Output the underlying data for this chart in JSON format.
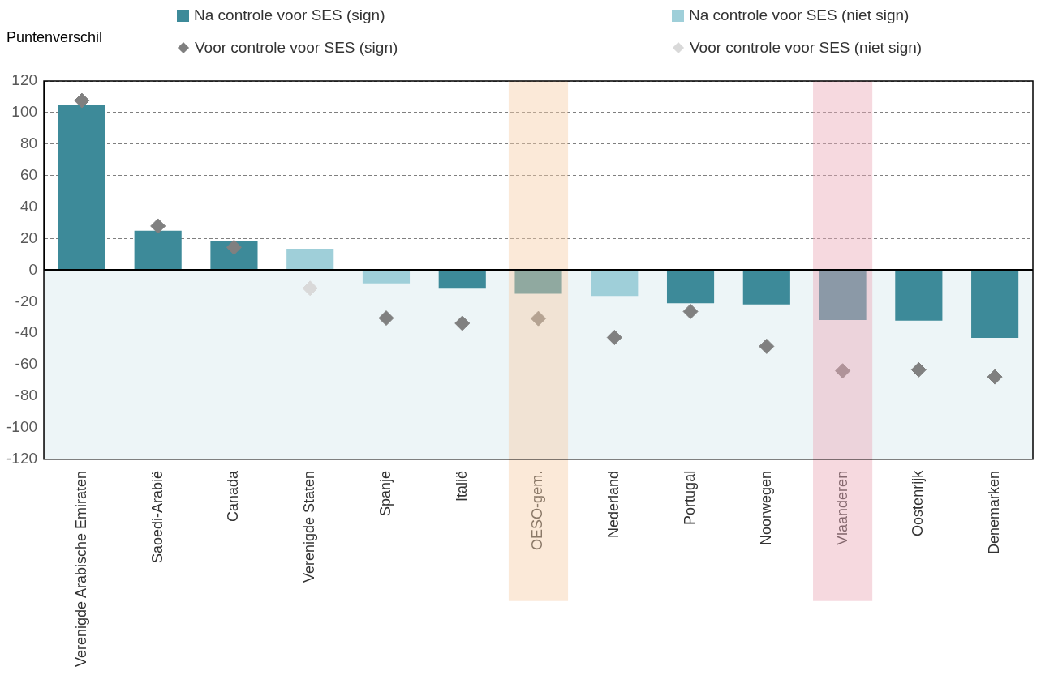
{
  "chart_data": {
    "type": "bar",
    "ylabel": "Puntenverschil",
    "categories": [
      "Verenigde Arabische Emiraten",
      "Saoedi-Arabië",
      "Canada",
      "Verenigde Staten",
      "Spanje",
      "Italië",
      "OESO-gem.",
      "Nederland",
      "Portugal",
      "Noorwegen",
      "Vlaanderen",
      "Oostenrijk",
      "Denemarken"
    ],
    "series": [
      {
        "name": "Na controle voor SES (sign)",
        "color": "#3d8a99",
        "values": [
          105,
          25,
          18.5,
          null,
          null,
          -11.7,
          -15,
          null,
          -21,
          -21.7,
          -31.6,
          -32,
          -43
        ]
      },
      {
        "name": "Na controle voor SES (niet sign)",
        "color": "#9fcfd9",
        "values": [
          null,
          null,
          null,
          13.6,
          -8.4,
          null,
          null,
          -16.3,
          null,
          null,
          null,
          null,
          null
        ]
      },
      {
        "name": "Voor controle voor SES (sign)",
        "type": "scatter",
        "color": "#808080",
        "values": [
          107.6,
          28,
          14.5,
          null,
          -30.4,
          -33.7,
          -30.7,
          -42.7,
          -26.2,
          -48.3,
          -63.9,
          -63.2,
          -67.7
        ]
      },
      {
        "name": "Voor controle voor SES (niet sign)",
        "type": "scatter",
        "color": "#d9d9d9",
        "values": [
          null,
          null,
          null,
          -11.5,
          null,
          null,
          null,
          null,
          null,
          null,
          null,
          null,
          null
        ]
      }
    ],
    "marker": "diamond",
    "ylim": [
      -120,
      120
    ],
    "yticks": [
      -120,
      -100,
      -80,
      -60,
      -40,
      -20,
      0,
      20,
      40,
      60,
      80,
      100,
      120
    ],
    "grid": "y",
    "legend": "top",
    "ref_lines": [
      {
        "axis": "y",
        "value": 0,
        "color": "#000000"
      }
    ],
    "bands": [
      {
        "axis": "y",
        "from": -120,
        "to": 0,
        "color": "#edf5f7"
      },
      {
        "axis": "x",
        "from": "OESO-gem.",
        "to": "OESO-gem.",
        "color": "#f6cfa8"
      },
      {
        "axis": "x",
        "from": "Vlaanderen",
        "to": "Vlaanderen",
        "color": "#ebabb9"
      }
    ]
  }
}
